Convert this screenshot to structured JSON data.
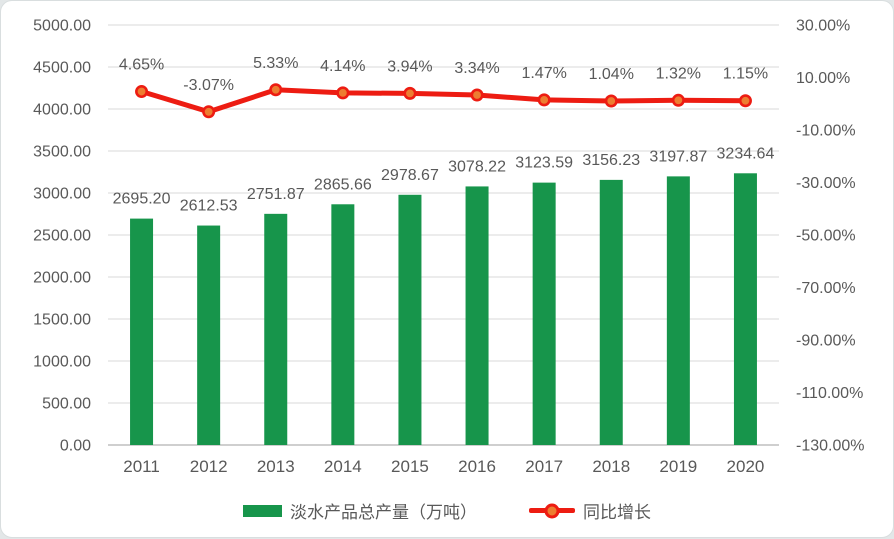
{
  "page": {
    "background": "#e3e7e8",
    "card_background": "#ffffff",
    "card_border": "#d9dedf"
  },
  "chart_data": {
    "type": "bar+line",
    "categories": [
      "2011",
      "2012",
      "2013",
      "2014",
      "2015",
      "2016",
      "2017",
      "2018",
      "2019",
      "2020"
    ],
    "series": [
      {
        "name": "淡水产品总产量（万吨）",
        "type": "bar",
        "axis": "left",
        "color": "#17954B",
        "values": [
          2695.2,
          2612.53,
          2751.87,
          2865.66,
          2978.67,
          3078.22,
          3123.59,
          3156.23,
          3197.87,
          3234.64
        ],
        "data_labels": [
          "2695.20",
          "2612.53",
          "2751.87",
          "2865.66",
          "2978.67",
          "3078.22",
          "3123.59",
          "3156.23",
          "3197.87",
          "3234.64"
        ]
      },
      {
        "name": "同比增长",
        "type": "line",
        "axis": "right",
        "color": "#ED1C12",
        "marker_color": "#ED7D31",
        "values": [
          4.65,
          -3.07,
          5.33,
          4.14,
          3.94,
          3.34,
          1.47,
          1.04,
          1.32,
          1.15
        ],
        "data_labels": [
          "4.65%",
          "-3.07%",
          "5.33%",
          "4.14%",
          "3.94%",
          "3.34%",
          "1.47%",
          "1.04%",
          "1.32%",
          "1.15%"
        ]
      }
    ],
    "left_axis": {
      "min": 0,
      "max": 5000,
      "step": 500,
      "tick_labels": [
        "5000.00",
        "4500.00",
        "4000.00",
        "3500.00",
        "3000.00",
        "2500.00",
        "2000.00",
        "1500.00",
        "1000.00",
        "500.00",
        "0.00"
      ]
    },
    "right_axis": {
      "min": -130,
      "max": 30,
      "step": 20,
      "tick_labels": [
        "30.00%",
        "10.00%",
        "-10.00%",
        "-30.00%",
        "-50.00%",
        "-70.00%",
        "-90.00%",
        "-110.00%",
        "-130.00%"
      ]
    },
    "grid": true,
    "legend_position": "bottom",
    "styles": {
      "text_color": "#595959",
      "grid_color": "#D9D9D9",
      "axis_line_color": "#BFBFBF"
    }
  }
}
